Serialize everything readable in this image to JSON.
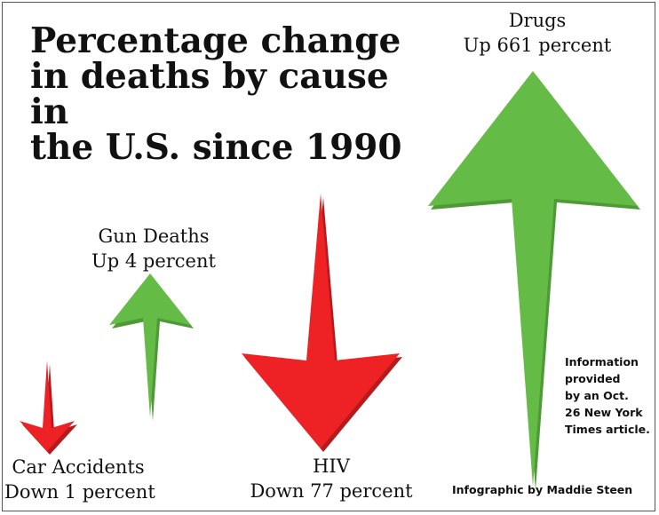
{
  "title_lines": [
    "Percentage change",
    "in deaths by cause in",
    "the U.S. since 1990"
  ],
  "colors": {
    "up": "#64bb46",
    "up_shade": "#4e9a36",
    "down": "#ee2125",
    "down_shade": "#b51a1d"
  },
  "chart_data": {
    "type": "bar",
    "title": "Percentage change in deaths by cause in the U.S. since 1990",
    "categories": [
      "Car Accidents",
      "Gun Deaths",
      "HIV",
      "Drugs"
    ],
    "values": [
      -1,
      4,
      -77,
      661
    ],
    "unit": "percent",
    "labels": [
      {
        "name": "Car Accidents",
        "change": "Down 1 percent"
      },
      {
        "name": "Gun Deaths",
        "change": "Up 4 percent"
      },
      {
        "name": "HIV",
        "change": "Down 77 percent"
      },
      {
        "name": "Drugs",
        "change": "Up 661 percent"
      }
    ]
  },
  "source_note_lines": [
    "Information",
    "provided",
    "by an Oct.",
    "26 New York",
    "Times article."
  ],
  "credit": "Infographic by  Maddie Steen"
}
